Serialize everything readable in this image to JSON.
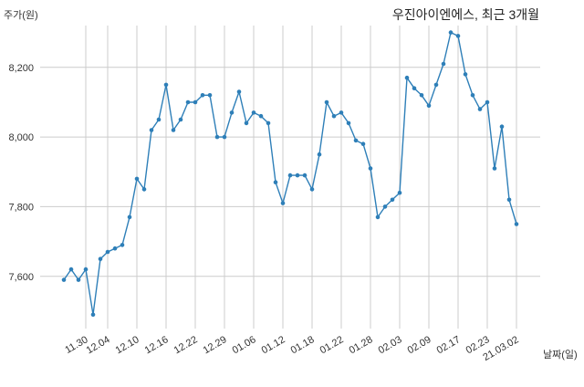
{
  "chart_data": {
    "type": "line",
    "title": "우진아이엔에스, 최근 3개월",
    "ylabel": "주가(원)",
    "xlabel": "날짜(일)",
    "ylim": [
      7450,
      8320
    ],
    "yticks": [
      7600,
      7800,
      8000,
      8200
    ],
    "ytick_labels": [
      "7,600",
      "7,800",
      "8,000",
      "8,200"
    ],
    "xtick_labels": [
      "11.30",
      "12.04",
      "12.10",
      "12.16",
      "12.22",
      "12.29",
      "01.06",
      "01.12",
      "01.18",
      "01.22",
      "01.28",
      "02.03",
      "02.09",
      "02.17",
      "02.23",
      "21.03.02"
    ],
    "xtick_indices": [
      3,
      6,
      10,
      14,
      18,
      22,
      26,
      30,
      34,
      38,
      42,
      46,
      50,
      54,
      58,
      62
    ],
    "grid": true,
    "line_color": "#2e7fb8",
    "series": [
      {
        "values": [
          7590,
          7620,
          7590,
          7620,
          7490,
          7650,
          7670,
          7680,
          7690,
          7770,
          7880,
          7850,
          8020,
          8050,
          8150,
          8020,
          8050,
          8100,
          8100,
          8120,
          8120,
          8000,
          8000,
          8070,
          8130,
          8040,
          8070,
          8060,
          8040,
          7870,
          7810,
          7890,
          7890,
          7890,
          7850,
          7950,
          8100,
          8060,
          8070,
          8040,
          7990,
          7980,
          7910,
          7770,
          7800,
          7820,
          7840,
          8170,
          8140,
          8120,
          8090,
          8150,
          8210,
          8300,
          8290,
          8180,
          8120,
          8080,
          8100,
          7910,
          8030,
          7820,
          7750
        ]
      }
    ]
  }
}
